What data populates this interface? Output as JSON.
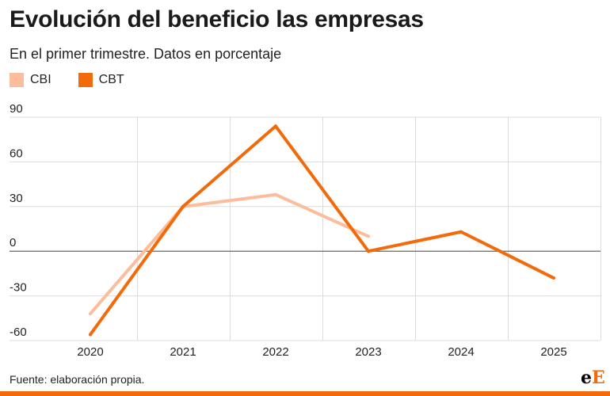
{
  "title": "Evolución del beneficio las empresas",
  "subtitle": "En el primer trimestre. Datos en porcentaje",
  "footer": "Fuente: elaboración propia.",
  "logo": {
    "text": "eE",
    "first": "e",
    "second": "E",
    "accent_color": "#f26a0a"
  },
  "chart_data": {
    "type": "line",
    "title": "Evolución del beneficio las empresas",
    "subtitle": "En el primer trimestre. Datos en porcentaje",
    "x": [
      "2020",
      "2021",
      "2022",
      "2023",
      "2024",
      "2025"
    ],
    "ylim": [
      -60,
      90
    ],
    "yticks": [
      90,
      60,
      30,
      0,
      -30,
      -60
    ],
    "grid": true,
    "legend_position": "top-left",
    "series": [
      {
        "name": "CBI",
        "color": "#fbbd9b",
        "values": [
          -42,
          30,
          38,
          10,
          null,
          null
        ]
      },
      {
        "name": "CBT",
        "color": "#f26a0a",
        "values": [
          -56,
          30,
          84,
          0,
          13,
          -18
        ]
      }
    ]
  }
}
